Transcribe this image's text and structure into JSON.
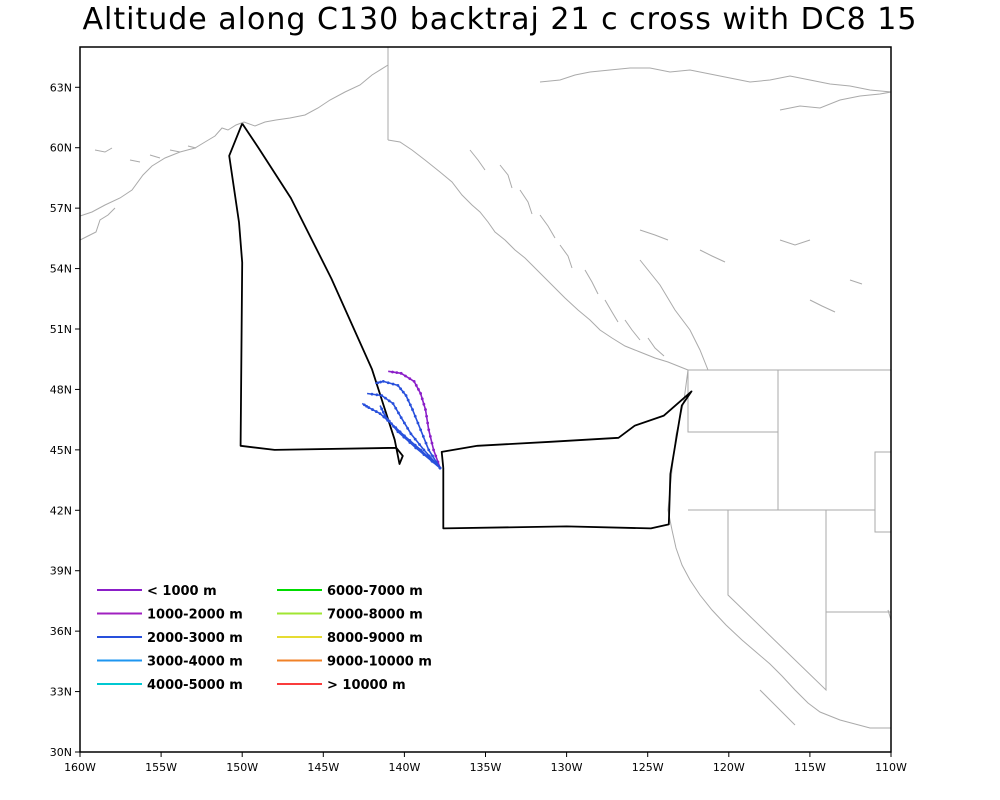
{
  "title": "Altitude along C130 backtraj 21 c cross with DC8 15",
  "map": {
    "lon_range": [
      -160,
      -110
    ],
    "lat_range": [
      30,
      65
    ],
    "lat_ticks": [
      {
        "value": 30,
        "label": "30N"
      },
      {
        "value": 33,
        "label": "33N"
      },
      {
        "value": 36,
        "label": "36N"
      },
      {
        "value": 39,
        "label": "39N"
      },
      {
        "value": 42,
        "label": "42N"
      },
      {
        "value": 45,
        "label": "45N"
      },
      {
        "value": 48,
        "label": "48N"
      },
      {
        "value": 51,
        "label": "51N"
      },
      {
        "value": 54,
        "label": "54N"
      },
      {
        "value": 57,
        "label": "57N"
      },
      {
        "value": 60,
        "label": "60N"
      },
      {
        "value": 63,
        "label": "63N"
      }
    ],
    "lon_ticks": [
      {
        "value": -160,
        "label": "160W"
      },
      {
        "value": -155,
        "label": "155W"
      },
      {
        "value": -150,
        "label": "150W"
      },
      {
        "value": -145,
        "label": "145W"
      },
      {
        "value": -140,
        "label": "140W"
      },
      {
        "value": -135,
        "label": "135W"
      },
      {
        "value": -130,
        "label": "130W"
      },
      {
        "value": -125,
        "label": "125W"
      },
      {
        "value": -120,
        "label": "120W"
      },
      {
        "value": -115,
        "label": "115W"
      },
      {
        "value": -110,
        "label": "110W"
      }
    ],
    "coast_color": "#aaaaaa",
    "flight_color": "#000000"
  },
  "legend": [
    {
      "label": "< 1000 m",
      "color": "#8b1ec8"
    },
    {
      "label": "1000-2000 m",
      "color": "#a020c0"
    },
    {
      "label": "2000-3000 m",
      "color": "#2850dc"
    },
    {
      "label": "3000-4000 m",
      "color": "#1e96f0"
    },
    {
      "label": "4000-5000 m",
      "color": "#00c8d2"
    },
    {
      "label": "6000-7000 m",
      "color": "#00dc00"
    },
    {
      "label": "7000-8000 m",
      "color": "#a0e632"
    },
    {
      "label": "8000-9000 m",
      "color": "#e6dc32"
    },
    {
      "label": "9000-10000 m",
      "color": "#f08228"
    },
    {
      "label": "> 10000 m",
      "color": "#fa3c3c"
    }
  ],
  "flight_track": [
    [
      -150,
      61.2
    ],
    [
      -150.8,
      59.6
    ],
    [
      -150.2,
      56.3
    ],
    [
      -150,
      54.3
    ],
    [
      -150.1,
      45.2
    ],
    [
      -148,
      45
    ],
    [
      -140.5,
      45.1
    ],
    [
      -140.1,
      44.7
    ],
    [
      -140.3,
      44.3
    ],
    [
      -140.6,
      45.5
    ],
    [
      -142,
      49
    ],
    [
      -144.5,
      53.5
    ],
    [
      -147,
      57.5
    ],
    [
      -149,
      60
    ],
    [
      -150,
      61.2
    ]
  ],
  "flight_track_east": [
    [
      -137.6,
      44.1
    ],
    [
      -137.7,
      44.9
    ],
    [
      -135.5,
      45.2
    ],
    [
      -131,
      45.4
    ],
    [
      -126.8,
      45.6
    ],
    [
      -125.8,
      46.2
    ],
    [
      -124,
      46.7
    ],
    [
      -122.3,
      47.9
    ],
    [
      -122.9,
      47.2
    ],
    [
      -123.6,
      43.8
    ],
    [
      -123.7,
      41.3
    ],
    [
      -124.8,
      41.1
    ],
    [
      -130,
      41.2
    ],
    [
      -137.6,
      41.1
    ],
    [
      -137.6,
      44.1
    ]
  ],
  "trajectories": [
    {
      "color": "#8b1ec8",
      "points": [
        [
          -137.8,
          44.1
        ],
        [
          -138.2,
          45
        ],
        [
          -138.5,
          46
        ],
        [
          -138.7,
          47
        ],
        [
          -139,
          47.8
        ],
        [
          -139.4,
          48.4
        ],
        [
          -140.2,
          48.8
        ],
        [
          -141,
          48.9
        ]
      ]
    },
    {
      "color": "#2850dc",
      "points": [
        [
          -137.8,
          44.1
        ],
        [
          -138.5,
          45
        ],
        [
          -139,
          46
        ],
        [
          -139.5,
          47
        ],
        [
          -139.9,
          47.7
        ],
        [
          -140.4,
          48.2
        ],
        [
          -141.3,
          48.4
        ],
        [
          -141.8,
          48.3
        ]
      ]
    },
    {
      "color": "#2850dc",
      "points": [
        [
          -137.8,
          44.1
        ],
        [
          -138.8,
          45
        ],
        [
          -139.6,
          45.8
        ],
        [
          -140.2,
          46.6
        ],
        [
          -140.7,
          47.3
        ],
        [
          -141.4,
          47.7
        ],
        [
          -142.3,
          47.8
        ]
      ]
    },
    {
      "color": "#2850dc",
      "points": [
        [
          -137.8,
          44.1
        ],
        [
          -139,
          45
        ],
        [
          -140,
          45.7
        ],
        [
          -140.8,
          46.3
        ],
        [
          -141.5,
          46.8
        ],
        [
          -142.2,
          47.1
        ],
        [
          -142.6,
          47.3
        ]
      ]
    },
    {
      "color": "#2850dc",
      "points": [
        [
          -137.8,
          44.1
        ],
        [
          -139.3,
          45.1
        ],
        [
          -140.4,
          45.9
        ],
        [
          -141.2,
          46.7
        ],
        [
          -141.5,
          47.2
        ]
      ]
    }
  ]
}
